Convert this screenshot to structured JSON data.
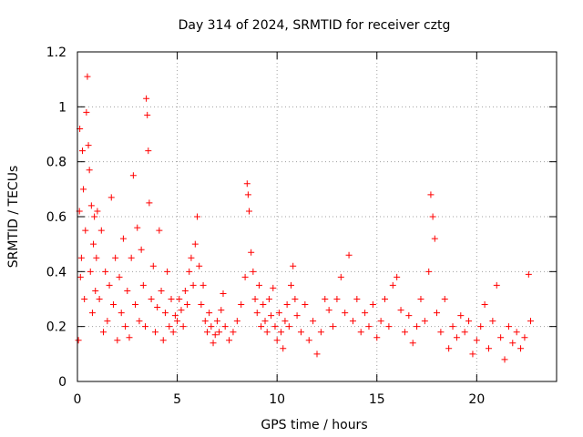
{
  "chart_data": {
    "type": "scatter",
    "title": "Day 314 of 2024, SRMTID for receiver cztg",
    "xlabel": "GPS time / hours",
    "ylabel": "SRMTID / TECUs",
    "xlim": [
      0,
      24
    ],
    "ylim": [
      0,
      1.2
    ],
    "xticks": [
      0,
      5,
      10,
      15,
      20
    ],
    "xtick_labels": [
      "0",
      "5",
      "10",
      "15",
      "20"
    ],
    "yticks": [
      0,
      0.2,
      0.4,
      0.6,
      0.8,
      1.0,
      1.2
    ],
    "ytick_labels": [
      "0",
      "0.2",
      "0.4",
      "0.6",
      "0.8",
      "1",
      "1.2"
    ],
    "grid": true,
    "marker": "+",
    "series": [
      {
        "name": "SRMTID",
        "color": "#ff0000",
        "points": [
          [
            0.05,
            0.15
          ],
          [
            0.1,
            0.62
          ],
          [
            0.12,
            0.92
          ],
          [
            0.15,
            0.38
          ],
          [
            0.2,
            0.45
          ],
          [
            0.25,
            0.84
          ],
          [
            0.3,
            0.7
          ],
          [
            0.35,
            0.3
          ],
          [
            0.4,
            0.55
          ],
          [
            0.45,
            0.98
          ],
          [
            0.5,
            1.11
          ],
          [
            0.55,
            0.86
          ],
          [
            0.6,
            0.77
          ],
          [
            0.65,
            0.4
          ],
          [
            0.7,
            0.64
          ],
          [
            0.75,
            0.25
          ],
          [
            0.8,
            0.5
          ],
          [
            0.85,
            0.6
          ],
          [
            0.9,
            0.33
          ],
          [
            0.95,
            0.45
          ],
          [
            1.0,
            0.62
          ],
          [
            1.1,
            0.3
          ],
          [
            1.2,
            0.55
          ],
          [
            1.3,
            0.18
          ],
          [
            1.4,
            0.4
          ],
          [
            1.5,
            0.22
          ],
          [
            1.6,
            0.35
          ],
          [
            1.7,
            0.67
          ],
          [
            1.8,
            0.28
          ],
          [
            1.9,
            0.45
          ],
          [
            2.0,
            0.15
          ],
          [
            2.1,
            0.38
          ],
          [
            2.2,
            0.25
          ],
          [
            2.3,
            0.52
          ],
          [
            2.4,
            0.2
          ],
          [
            2.5,
            0.33
          ],
          [
            2.6,
            0.16
          ],
          [
            2.7,
            0.45
          ],
          [
            2.8,
            0.75
          ],
          [
            2.9,
            0.28
          ],
          [
            3.0,
            0.56
          ],
          [
            3.1,
            0.22
          ],
          [
            3.2,
            0.48
          ],
          [
            3.3,
            0.35
          ],
          [
            3.4,
            0.2
          ],
          [
            3.45,
            1.03
          ],
          [
            3.5,
            0.97
          ],
          [
            3.55,
            0.84
          ],
          [
            3.6,
            0.65
          ],
          [
            3.7,
            0.3
          ],
          [
            3.8,
            0.42
          ],
          [
            3.9,
            0.18
          ],
          [
            4.0,
            0.27
          ],
          [
            4.1,
            0.55
          ],
          [
            4.2,
            0.33
          ],
          [
            4.3,
            0.15
          ],
          [
            4.4,
            0.25
          ],
          [
            4.5,
            0.4
          ],
          [
            4.6,
            0.2
          ],
          [
            4.7,
            0.3
          ],
          [
            4.8,
            0.18
          ],
          [
            4.9,
            0.24
          ],
          [
            5.0,
            0.22
          ],
          [
            5.1,
            0.3
          ],
          [
            5.2,
            0.26
          ],
          [
            5.3,
            0.2
          ],
          [
            5.4,
            0.33
          ],
          [
            5.5,
            0.28
          ],
          [
            5.6,
            0.4
          ],
          [
            5.7,
            0.45
          ],
          [
            5.8,
            0.35
          ],
          [
            5.9,
            0.5
          ],
          [
            6.0,
            0.6
          ],
          [
            6.1,
            0.42
          ],
          [
            6.2,
            0.28
          ],
          [
            6.3,
            0.35
          ],
          [
            6.4,
            0.22
          ],
          [
            6.5,
            0.18
          ],
          [
            6.6,
            0.25
          ],
          [
            6.7,
            0.2
          ],
          [
            6.8,
            0.14
          ],
          [
            6.9,
            0.17
          ],
          [
            7.0,
            0.22
          ],
          [
            7.1,
            0.18
          ],
          [
            7.2,
            0.26
          ],
          [
            7.3,
            0.32
          ],
          [
            7.4,
            0.2
          ],
          [
            7.6,
            0.15
          ],
          [
            7.8,
            0.18
          ],
          [
            8.0,
            0.22
          ],
          [
            8.2,
            0.28
          ],
          [
            8.4,
            0.38
          ],
          [
            8.5,
            0.72
          ],
          [
            8.55,
            0.68
          ],
          [
            8.6,
            0.62
          ],
          [
            8.7,
            0.47
          ],
          [
            8.8,
            0.4
          ],
          [
            8.9,
            0.3
          ],
          [
            9.0,
            0.25
          ],
          [
            9.1,
            0.35
          ],
          [
            9.2,
            0.2
          ],
          [
            9.3,
            0.28
          ],
          [
            9.4,
            0.22
          ],
          [
            9.5,
            0.18
          ],
          [
            9.6,
            0.3
          ],
          [
            9.7,
            0.24
          ],
          [
            9.8,
            0.34
          ],
          [
            9.9,
            0.2
          ],
          [
            10.0,
            0.15
          ],
          [
            10.1,
            0.25
          ],
          [
            10.2,
            0.18
          ],
          [
            10.3,
            0.12
          ],
          [
            10.4,
            0.22
          ],
          [
            10.5,
            0.28
          ],
          [
            10.6,
            0.2
          ],
          [
            10.7,
            0.35
          ],
          [
            10.8,
            0.42
          ],
          [
            10.9,
            0.3
          ],
          [
            11.0,
            0.24
          ],
          [
            11.2,
            0.18
          ],
          [
            11.4,
            0.28
          ],
          [
            11.6,
            0.15
          ],
          [
            11.8,
            0.22
          ],
          [
            12.0,
            0.1
          ],
          [
            12.2,
            0.18
          ],
          [
            12.4,
            0.3
          ],
          [
            12.6,
            0.26
          ],
          [
            12.8,
            0.2
          ],
          [
            13.0,
            0.3
          ],
          [
            13.2,
            0.38
          ],
          [
            13.4,
            0.25
          ],
          [
            13.6,
            0.46
          ],
          [
            13.8,
            0.22
          ],
          [
            14.0,
            0.3
          ],
          [
            14.2,
            0.18
          ],
          [
            14.4,
            0.25
          ],
          [
            14.6,
            0.2
          ],
          [
            14.8,
            0.28
          ],
          [
            15.0,
            0.16
          ],
          [
            15.2,
            0.22
          ],
          [
            15.4,
            0.3
          ],
          [
            15.6,
            0.2
          ],
          [
            15.8,
            0.35
          ],
          [
            16.0,
            0.38
          ],
          [
            16.2,
            0.26
          ],
          [
            16.4,
            0.18
          ],
          [
            16.6,
            0.24
          ],
          [
            16.8,
            0.14
          ],
          [
            17.0,
            0.2
          ],
          [
            17.2,
            0.3
          ],
          [
            17.4,
            0.22
          ],
          [
            17.6,
            0.4
          ],
          [
            17.7,
            0.68
          ],
          [
            17.8,
            0.6
          ],
          [
            17.9,
            0.52
          ],
          [
            18.0,
            0.25
          ],
          [
            18.2,
            0.18
          ],
          [
            18.4,
            0.3
          ],
          [
            18.6,
            0.12
          ],
          [
            18.8,
            0.2
          ],
          [
            19.0,
            0.16
          ],
          [
            19.2,
            0.24
          ],
          [
            19.4,
            0.18
          ],
          [
            19.6,
            0.22
          ],
          [
            19.8,
            0.1
          ],
          [
            20.0,
            0.15
          ],
          [
            20.2,
            0.2
          ],
          [
            20.4,
            0.28
          ],
          [
            20.6,
            0.12
          ],
          [
            20.8,
            0.22
          ],
          [
            21.0,
            0.35
          ],
          [
            21.2,
            0.16
          ],
          [
            21.4,
            0.08
          ],
          [
            21.6,
            0.2
          ],
          [
            21.8,
            0.14
          ],
          [
            22.0,
            0.18
          ],
          [
            22.2,
            0.12
          ],
          [
            22.4,
            0.16
          ],
          [
            22.6,
            0.39
          ],
          [
            22.7,
            0.22
          ]
        ]
      }
    ]
  }
}
